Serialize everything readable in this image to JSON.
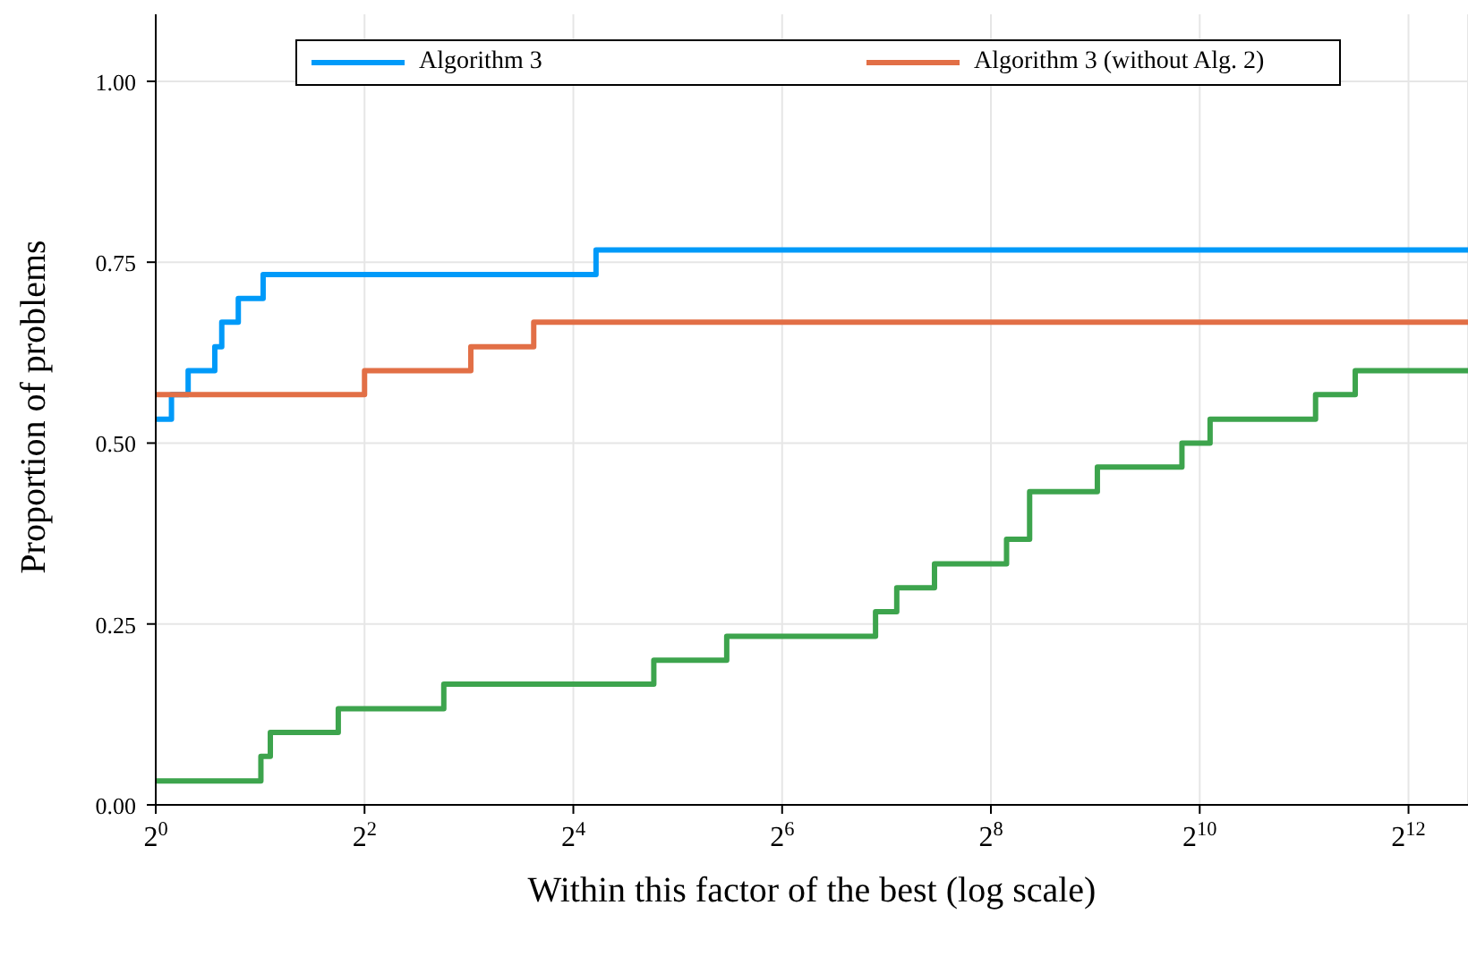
{
  "chart_data": {
    "type": "step",
    "xlabel": "Within this factor of the best (log scale)",
    "ylabel": "Proportion of problems",
    "log": "x",
    "grid": true,
    "legend": "top",
    "line_style": "solid",
    "marker": "none",
    "xlim": [
      1,
      6080
    ],
    "xticks": [
      {
        "value": 1,
        "label": "2$^{0}$"
      },
      {
        "value": 4,
        "label": "2$^{2}$"
      },
      {
        "value": 16,
        "label": "2$^{4}$"
      },
      {
        "value": 64,
        "label": "2$^{6}$"
      },
      {
        "value": 256,
        "label": "2$^{8}$"
      },
      {
        "value": 1024,
        "label": "2$^{10}$"
      },
      {
        "value": 4096,
        "label": "2$^{12}$"
      }
    ],
    "ylim": [
      0,
      1.1
    ],
    "yticks": [
      {
        "value": 0,
        "label": "0.00"
      },
      {
        "value": 0.25,
        "label": "0.25"
      },
      {
        "value": 0.5,
        "label": "0.50"
      },
      {
        "value": 0.75,
        "label": "0.75"
      },
      {
        "value": 1,
        "label": "1.00"
      }
    ],
    "series": [
      {
        "name": "Algorithm 3",
        "color": "#009af9",
        "x": [
          1,
          1.11,
          1.24,
          1.48,
          1.55,
          1.73,
          2.04,
          18.6,
          6080
        ],
        "values": [
          0.533,
          0.567,
          0.6,
          0.633,
          0.667,
          0.7,
          0.733,
          0.767,
          0.767
        ]
      },
      {
        "name": "Algorithm 3 (without Alg. 2)",
        "color": "#e26f46",
        "x": [
          1,
          4,
          8.1,
          12.3,
          6080
        ],
        "values": [
          0.567,
          0.6,
          0.633,
          0.667,
          0.667
        ]
      },
      {
        "color": "#3da44d",
        "x": [
          1,
          2.01,
          2.14,
          3.36,
          6.77,
          27.3,
          44.3,
          119,
          137,
          176,
          284,
          331,
          519,
          910,
          1097,
          2210,
          2876,
          6080
        ],
        "values": [
          0.033,
          0.067,
          0.1,
          0.133,
          0.167,
          0.2,
          0.233,
          0.267,
          0.3,
          0.333,
          0.367,
          0.433,
          0.467,
          0.5,
          0.533,
          0.567,
          0.6,
          0.6
        ]
      }
    ]
  }
}
